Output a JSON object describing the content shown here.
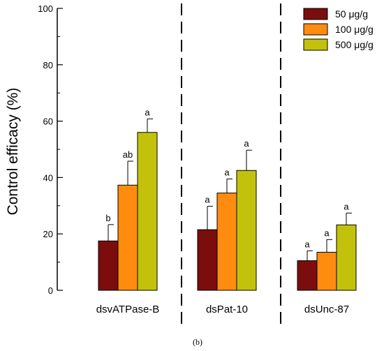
{
  "chart_data": {
    "type": "bar",
    "title": "",
    "xlabel": "",
    "ylabel": "Control efficacy (%)",
    "ylim": [
      0,
      100
    ],
    "yticks": [
      0,
      20,
      40,
      60,
      80,
      100
    ],
    "grid": false,
    "legend_position": "top-right",
    "categories": [
      "dsvATPase-B",
      "dsPat-10",
      "dsUnc-87"
    ],
    "series": [
      {
        "name": "50 μg/g",
        "color": "#7b0d0d",
        "values": [
          17.5,
          21.5,
          10.5
        ],
        "errors": [
          5.8,
          8.3,
          3.5
        ],
        "letters": [
          "b",
          "a",
          "a"
        ]
      },
      {
        "name": "100 μg/g",
        "color": "#ff8c0f",
        "values": [
          37.3,
          34.5,
          13.5
        ],
        "errors": [
          8.5,
          5.0,
          4.5
        ],
        "letters": [
          "ab",
          "a",
          "a"
        ]
      },
      {
        "name": "500 μg/g",
        "color": "#c2c20c",
        "values": [
          56.0,
          42.5,
          23.2
        ],
        "errors": [
          4.8,
          7.2,
          4.2
        ],
        "letters": [
          "a",
          "a",
          "a"
        ]
      }
    ]
  },
  "caption": "(b)"
}
